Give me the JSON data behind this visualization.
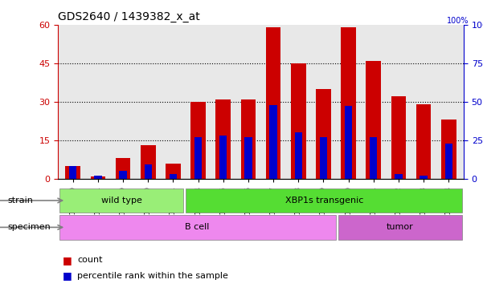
{
  "title": "GDS2640 / 1439382_x_at",
  "samples": [
    "GSM160730",
    "GSM160731",
    "GSM160739",
    "GSM160860",
    "GSM160861",
    "GSM160864",
    "GSM160865",
    "GSM160866",
    "GSM160867",
    "GSM160868",
    "GSM160869",
    "GSM160880",
    "GSM160881",
    "GSM160882",
    "GSM160883",
    "GSM160884"
  ],
  "counts": [
    5,
    1,
    8,
    13,
    6,
    30,
    31,
    31,
    59,
    45,
    35,
    59,
    46,
    32,
    29,
    23
  ],
  "percentile_ranks": [
    8,
    2,
    5,
    9,
    3,
    27,
    28,
    27,
    48,
    30,
    27,
    47,
    27,
    3,
    2,
    23
  ],
  "left_yaxis_ticks": [
    0,
    15,
    30,
    45,
    60
  ],
  "left_yaxis_color": "#cc0000",
  "right_yaxis_ticks": [
    0,
    25,
    50,
    75,
    100
  ],
  "right_yaxis_color": "#0000cc",
  "bar_color_count": "#cc0000",
  "bar_color_pct": "#0000cc",
  "ylim_left": [
    0,
    60
  ],
  "ylim_right": [
    0,
    100
  ],
  "grid_color": "black",
  "strain_groups": [
    {
      "label": "wild type",
      "start": 0,
      "end": 5,
      "color": "#99ee77"
    },
    {
      "label": "XBP1s transgenic",
      "start": 5,
      "end": 16,
      "color": "#55dd33"
    }
  ],
  "specimen_groups": [
    {
      "label": "B cell",
      "start": 0,
      "end": 11,
      "color": "#ee88ee"
    },
    {
      "label": "tumor",
      "start": 11,
      "end": 16,
      "color": "#cc66cc"
    }
  ],
  "strain_label": "strain",
  "specimen_label": "specimen",
  "legend_count_label": "count",
  "legend_pct_label": "percentile rank within the sample",
  "plot_bg_color": "#e8e8e8",
  "bar_width": 0.6
}
